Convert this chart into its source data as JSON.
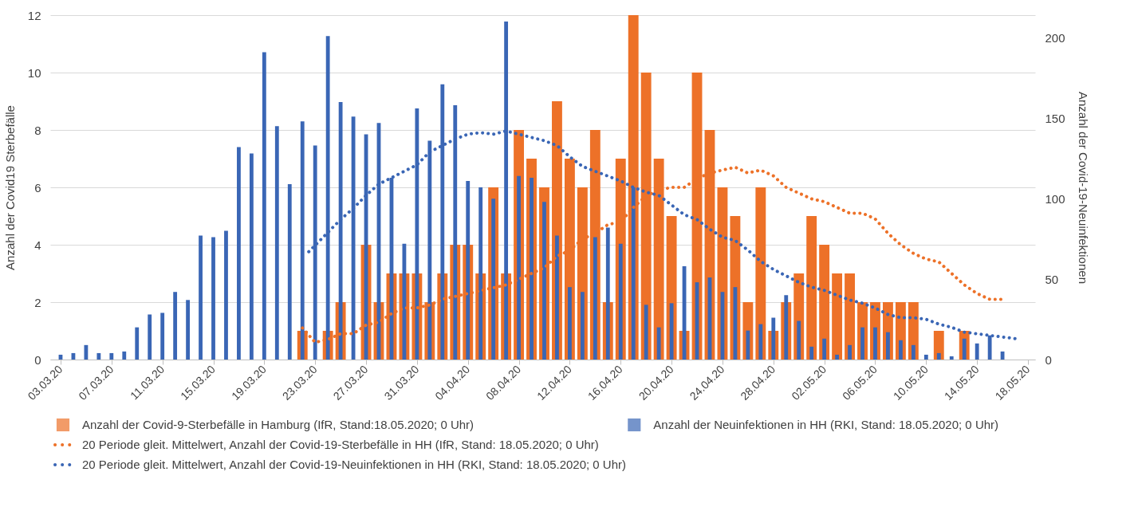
{
  "chart_data": {
    "type": "bar",
    "ylabel": "Anzahl der Covid19 Sterbefälle",
    "y2label": "Anzahl der Covid-19-Neuinfektionen",
    "xlim": [
      "2020-03-02T12:00",
      "2020-05-18T06:00"
    ],
    "xticks": [
      {
        "value": "2020-03-03",
        "label": "03.03.20"
      },
      {
        "value": "2020-03-07",
        "label": "07.03.20"
      },
      {
        "value": "2020-03-11",
        "label": "11.03.20"
      },
      {
        "value": "2020-03-15",
        "label": "15.03.20"
      },
      {
        "value": "2020-03-19",
        "label": "19.03.20"
      },
      {
        "value": "2020-03-23",
        "label": "23.03.20"
      },
      {
        "value": "2020-03-27",
        "label": "27.03.20"
      },
      {
        "value": "2020-03-31",
        "label": "31.03.20"
      },
      {
        "value": "2020-04-04",
        "label": "04.04.20"
      },
      {
        "value": "2020-04-08",
        "label": "08.04.20"
      },
      {
        "value": "2020-04-12",
        "label": "12.04.20"
      },
      {
        "value": "2020-04-16",
        "label": "16.04.20"
      },
      {
        "value": "2020-04-20",
        "label": "20.04.20"
      },
      {
        "value": "2020-04-24",
        "label": "24.04.20"
      },
      {
        "value": "2020-04-28",
        "label": "28.04.20"
      },
      {
        "value": "2020-05-02",
        "label": "02.05.20"
      },
      {
        "value": "2020-05-06",
        "label": "06.05.20"
      },
      {
        "value": "2020-05-10",
        "label": "10.05.20"
      },
      {
        "value": "2020-05-14",
        "label": "14.05.20"
      },
      {
        "value": "2020-05-18",
        "label": "18.05.20"
      }
    ],
    "ylim": [
      0,
      12
    ],
    "yticks": [
      0,
      2,
      4,
      6,
      8,
      10,
      12
    ],
    "y2lim": [
      0,
      214
    ],
    "y2ticks": [
      0,
      50,
      100,
      150,
      200
    ],
    "grid": "y",
    "legend": "bottom",
    "series": [
      {
        "name": "Anzahl der Covid-9-Sterbefälle in Hamburg (IfR, Stand:18.05.2020; 0 Uhr)",
        "axis": "y",
        "color": "#ed7128",
        "x": [
          "2020-03-03",
          "2020-03-04",
          "2020-03-05",
          "2020-03-06",
          "2020-03-07",
          "2020-03-08",
          "2020-03-09",
          "2020-03-10",
          "2020-03-11",
          "2020-03-12",
          "2020-03-13",
          "2020-03-14",
          "2020-03-15",
          "2020-03-16",
          "2020-03-17",
          "2020-03-18",
          "2020-03-19",
          "2020-03-20",
          "2020-03-21",
          "2020-03-22",
          "2020-03-23",
          "2020-03-24",
          "2020-03-25",
          "2020-03-26",
          "2020-03-27",
          "2020-03-28",
          "2020-03-29",
          "2020-03-30",
          "2020-03-31",
          "2020-04-01",
          "2020-04-02",
          "2020-04-03",
          "2020-04-04",
          "2020-04-05",
          "2020-04-06",
          "2020-04-07",
          "2020-04-08",
          "2020-04-09",
          "2020-04-10",
          "2020-04-11",
          "2020-04-12",
          "2020-04-13",
          "2020-04-14",
          "2020-04-15",
          "2020-04-16",
          "2020-04-17",
          "2020-04-18",
          "2020-04-19",
          "2020-04-20",
          "2020-04-21",
          "2020-04-22",
          "2020-04-23",
          "2020-04-24",
          "2020-04-25",
          "2020-04-26",
          "2020-04-27",
          "2020-04-28",
          "2020-04-29",
          "2020-04-30",
          "2020-05-01",
          "2020-05-02",
          "2020-05-03",
          "2020-05-04",
          "2020-05-05",
          "2020-05-06",
          "2020-05-07",
          "2020-05-08",
          "2020-05-09",
          "2020-05-10",
          "2020-05-11",
          "2020-05-12",
          "2020-05-13",
          "2020-05-14",
          "2020-05-15",
          "2020-05-16"
        ],
        "values": [
          0,
          0,
          0,
          0,
          0,
          0,
          0,
          0,
          0,
          0,
          0,
          0,
          0,
          0,
          0,
          0,
          0,
          0,
          0,
          1,
          0,
          1,
          2,
          0,
          4,
          2,
          3,
          3,
          3,
          2,
          3,
          4,
          4,
          3,
          6,
          3,
          8,
          7,
          6,
          9,
          7,
          6,
          8,
          2,
          7,
          12,
          10,
          7,
          5,
          1,
          10,
          8,
          6,
          5,
          2,
          6,
          1,
          2,
          3,
          5,
          4,
          3,
          3,
          2,
          2,
          2,
          2,
          2,
          0,
          1,
          0,
          1,
          0,
          0,
          0
        ]
      },
      {
        "name": "Anzahl der Neuinfektionen in HH (RKI, Stand: 18.05.2020; 0 Uhr)",
        "axis": "y2",
        "color": "#3a66b5",
        "x": [
          "2020-03-03",
          "2020-03-04",
          "2020-03-05",
          "2020-03-06",
          "2020-03-07",
          "2020-03-08",
          "2020-03-09",
          "2020-03-10",
          "2020-03-11",
          "2020-03-12",
          "2020-03-13",
          "2020-03-14",
          "2020-03-15",
          "2020-03-16",
          "2020-03-17",
          "2020-03-18",
          "2020-03-19",
          "2020-03-20",
          "2020-03-21",
          "2020-03-22",
          "2020-03-23",
          "2020-03-24",
          "2020-03-25",
          "2020-03-26",
          "2020-03-27",
          "2020-03-28",
          "2020-03-29",
          "2020-03-30",
          "2020-03-31",
          "2020-04-01",
          "2020-04-02",
          "2020-04-03",
          "2020-04-04",
          "2020-04-05",
          "2020-04-06",
          "2020-04-07",
          "2020-04-08",
          "2020-04-09",
          "2020-04-10",
          "2020-04-11",
          "2020-04-12",
          "2020-04-13",
          "2020-04-14",
          "2020-04-15",
          "2020-04-16",
          "2020-04-17",
          "2020-04-18",
          "2020-04-19",
          "2020-04-20",
          "2020-04-21",
          "2020-04-22",
          "2020-04-23",
          "2020-04-24",
          "2020-04-25",
          "2020-04-26",
          "2020-04-27",
          "2020-04-28",
          "2020-04-29",
          "2020-04-30",
          "2020-05-01",
          "2020-05-02",
          "2020-05-03",
          "2020-05-04",
          "2020-05-05",
          "2020-05-06",
          "2020-05-07",
          "2020-05-08",
          "2020-05-09",
          "2020-05-10",
          "2020-05-11",
          "2020-05-12",
          "2020-05-13",
          "2020-05-14",
          "2020-05-15",
          "2020-05-16"
        ],
        "values": [
          3,
          4,
          9,
          4,
          4,
          5,
          20,
          28,
          29,
          42,
          37,
          77,
          76,
          80,
          132,
          128,
          191,
          145,
          109,
          148,
          133,
          201,
          160,
          151,
          140,
          147,
          113,
          72,
          156,
          136,
          171,
          158,
          111,
          107,
          100,
          210,
          114,
          113,
          98,
          77,
          45,
          42,
          76,
          82,
          72,
          107,
          34,
          20,
          35,
          58,
          48,
          51,
          42,
          45,
          18,
          22,
          26,
          40,
          24,
          8,
          13,
          3,
          9,
          20,
          20,
          17,
          12,
          9,
          3,
          4,
          2,
          13,
          10,
          15,
          5
        ]
      },
      {
        "name": "20 Periode gleit. Mittelwert, Anzahl der Covid-19-Sterbefälle in HH (IfR, Stand: 18.05.2020; 0 Uhr)",
        "type": "line",
        "axis": "y",
        "color": "#ed7128",
        "line_style": "dotted",
        "marker": "none",
        "x": [
          "2020-03-22",
          "2020-03-23",
          "2020-03-24",
          "2020-03-25",
          "2020-03-26",
          "2020-03-27",
          "2020-03-28",
          "2020-03-29",
          "2020-03-30",
          "2020-03-31",
          "2020-04-01",
          "2020-04-02",
          "2020-04-03",
          "2020-04-04",
          "2020-04-05",
          "2020-04-06",
          "2020-04-07",
          "2020-04-08",
          "2020-04-09",
          "2020-04-10",
          "2020-04-11",
          "2020-04-12",
          "2020-04-13",
          "2020-04-14",
          "2020-04-15",
          "2020-04-16",
          "2020-04-17",
          "2020-04-18",
          "2020-04-19",
          "2020-04-20",
          "2020-04-21",
          "2020-04-22",
          "2020-04-23",
          "2020-04-24",
          "2020-04-25",
          "2020-04-26",
          "2020-04-27",
          "2020-04-28",
          "2020-04-29",
          "2020-04-30",
          "2020-05-01",
          "2020-05-02",
          "2020-05-03",
          "2020-05-04",
          "2020-05-05",
          "2020-05-06",
          "2020-05-07",
          "2020-05-08",
          "2020-05-09",
          "2020-05-10",
          "2020-05-11",
          "2020-05-12",
          "2020-05-13",
          "2020-05-14",
          "2020-05-15",
          "2020-05-16"
        ],
        "values": [
          1.1,
          0.6,
          0.7,
          0.9,
          0.9,
          1.2,
          1.3,
          1.6,
          1.8,
          1.8,
          1.9,
          2.1,
          2.2,
          2.3,
          2.4,
          2.5,
          2.6,
          2.8,
          3.0,
          3.2,
          3.6,
          3.8,
          4.2,
          4.4,
          4.7,
          4.8,
          5.3,
          5.7,
          5.9,
          6.0,
          6.0,
          6.3,
          6.5,
          6.6,
          6.7,
          6.5,
          6.6,
          6.4,
          6.0,
          5.8,
          5.6,
          5.5,
          5.3,
          5.1,
          5.1,
          4.9,
          4.4,
          4.0,
          3.7,
          3.5,
          3.4,
          3.0,
          2.6,
          2.3,
          2.1,
          2.1
        ]
      },
      {
        "name": "20 Periode gleit. Mittelwert, Anzahl der Covid-19-Neuinfektionen in HH (RKI, Stand: 18.05.2020; 0 Uhr)",
        "type": "line",
        "axis": "y2",
        "color": "#3a66b5",
        "line_style": "dotted",
        "marker": "none",
        "x": [
          "2020-03-22T12:00",
          "2020-03-23",
          "2020-03-24",
          "2020-03-25",
          "2020-03-26",
          "2020-03-27",
          "2020-03-28",
          "2020-03-29",
          "2020-03-30",
          "2020-03-31",
          "2020-04-01",
          "2020-04-02",
          "2020-04-03",
          "2020-04-04",
          "2020-04-05",
          "2020-04-06",
          "2020-04-07",
          "2020-04-08",
          "2020-04-09",
          "2020-04-10",
          "2020-04-11",
          "2020-04-12",
          "2020-04-13",
          "2020-04-14",
          "2020-04-15",
          "2020-04-16",
          "2020-04-17",
          "2020-04-18",
          "2020-04-19",
          "2020-04-20",
          "2020-04-21",
          "2020-04-22",
          "2020-04-23",
          "2020-04-24",
          "2020-04-25",
          "2020-04-26",
          "2020-04-27",
          "2020-04-28",
          "2020-04-29",
          "2020-04-30",
          "2020-05-01",
          "2020-05-02",
          "2020-05-03",
          "2020-05-04",
          "2020-05-05",
          "2020-05-06",
          "2020-05-07",
          "2020-05-08",
          "2020-05-09",
          "2020-05-10",
          "2020-05-11",
          "2020-05-12",
          "2020-05-13",
          "2020-05-14",
          "2020-05-15",
          "2020-05-16",
          "2020-05-17"
        ],
        "values": [
          67,
          71,
          79,
          87,
          94,
          102,
          109,
          113,
          117,
          121,
          129,
          133,
          137,
          140,
          141,
          140,
          142,
          140,
          138,
          136,
          133,
          126,
          120,
          117,
          114,
          111,
          107,
          104,
          102,
          96,
          90,
          87,
          81,
          76,
          74,
          68,
          61,
          56,
          52,
          48,
          45,
          43,
          40,
          37,
          35,
          32,
          28,
          26,
          26,
          25,
          22,
          20,
          17,
          16,
          15,
          14,
          13
        ]
      }
    ]
  }
}
